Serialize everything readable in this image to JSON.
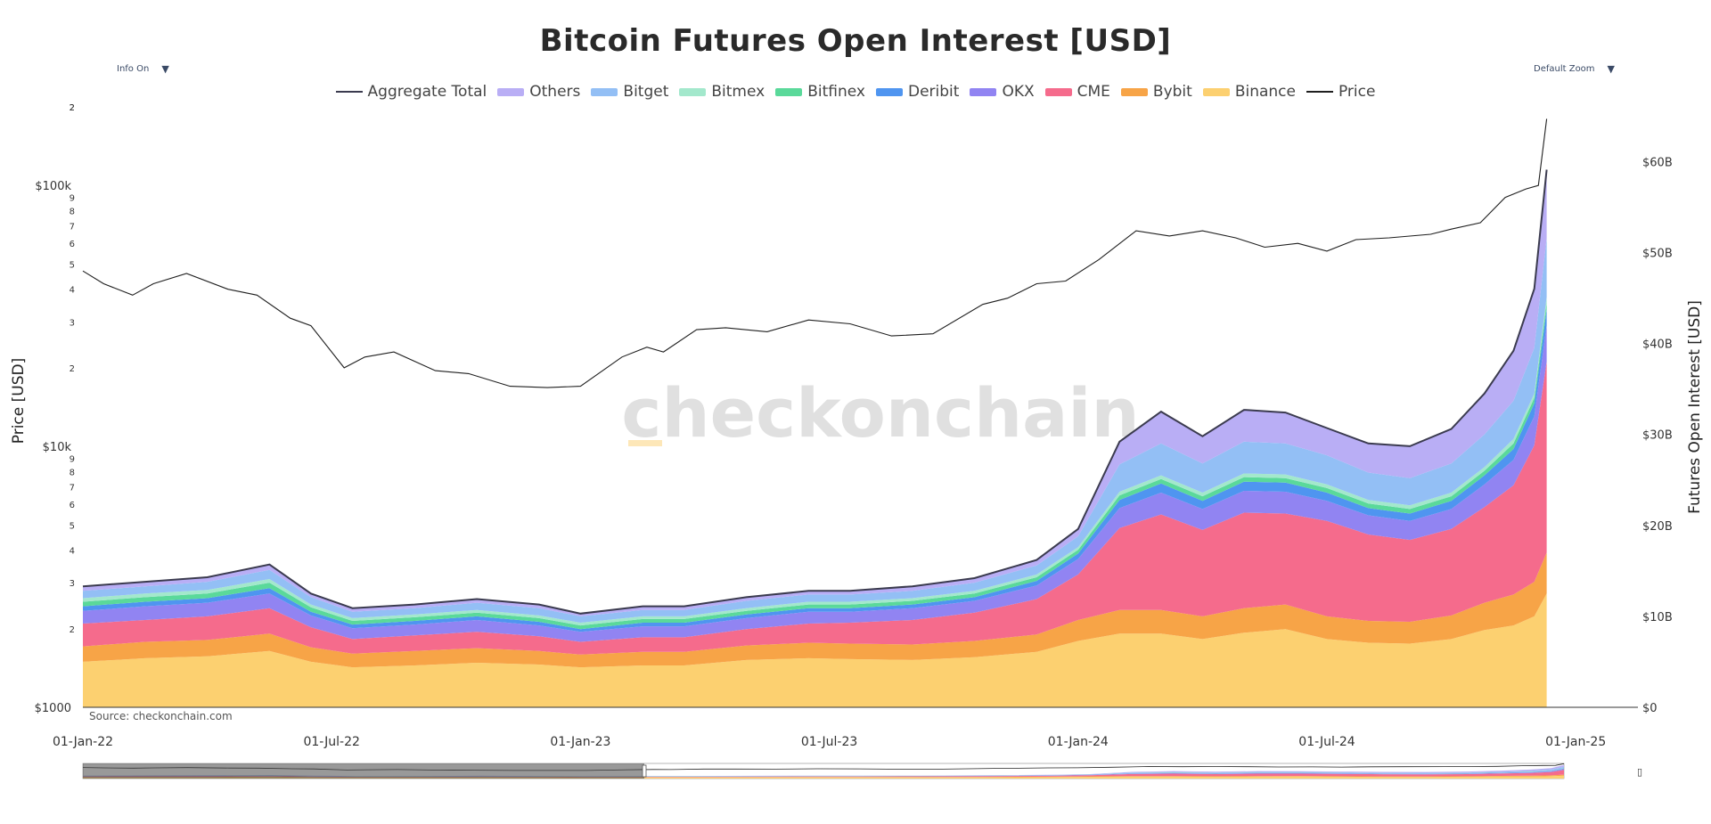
{
  "controls": {
    "info_label": "Info On",
    "zoom_label": "Default Zoom",
    "caret": "▼",
    "rangeslider_glyph": "▯"
  },
  "source_text": "Source: checkonchain.com",
  "watermark": "checkonchain",
  "colors": {
    "background": "#ffffff",
    "price_line": "#1f1f1f",
    "aggregate_line": "#3b3b4f",
    "axis": "#333333"
  },
  "chart_data": {
    "type": "area",
    "title": "Bitcoin Futures Open Interest [USD]",
    "y_left_label": "Price [USD]",
    "y_right_label": "Futures Open Interest [USD]",
    "y_left_scale": "log",
    "y_left_range": [
      1000,
      200000
    ],
    "y_left_major_ticks": [
      "$1000",
      "$10k",
      "$100k"
    ],
    "y_left_minor_ticks": [
      "2",
      "3",
      "4",
      "5",
      "6",
      "7",
      "8",
      "9"
    ],
    "y_left_top_tick": "2",
    "y_right_range": [
      0,
      66
    ],
    "y_right_unit": "B USD",
    "y_right_ticks": [
      "$0",
      "$10B",
      "$20B",
      "$30B",
      "$40B",
      "$50B",
      "$60B"
    ],
    "x_ticks": [
      "01-Jan-22",
      "01-Jul-22",
      "01-Jan-23",
      "01-Jul-23",
      "01-Jan-24",
      "01-Jul-24",
      "01-Jan-25"
    ],
    "x_range_months": [
      0,
      37.5
    ],
    "data_end_month": 35.3,
    "legend": [
      {
        "name": "Aggregate Total",
        "color": "#3b3b4f",
        "kind": "line"
      },
      {
        "name": "Others",
        "color": "#b9aef5",
        "kind": "area"
      },
      {
        "name": "Bitget",
        "color": "#93bff5",
        "kind": "area"
      },
      {
        "name": "Bitmex",
        "color": "#a3e8cc",
        "kind": "area"
      },
      {
        "name": "Bitfinex",
        "color": "#5ad99a",
        "kind": "area"
      },
      {
        "name": "Deribit",
        "color": "#4f95f0",
        "kind": "area"
      },
      {
        "name": "OKX",
        "color": "#9184f2",
        "kind": "area"
      },
      {
        "name": "CME",
        "color": "#f56b8c",
        "kind": "area"
      },
      {
        "name": "Bybit",
        "color": "#f7a447",
        "kind": "area"
      },
      {
        "name": "Binance",
        "color": "#fcd070",
        "kind": "area"
      },
      {
        "name": "Price",
        "color": "#1f1f1f",
        "kind": "line"
      }
    ],
    "x_months": [
      0,
      1.5,
      3,
      4.5,
      5.5,
      6.5,
      8,
      9.5,
      11,
      12,
      13.5,
      14.5,
      16,
      17.5,
      18.5,
      20,
      21.5,
      23,
      24,
      25,
      26,
      27,
      28,
      29,
      30,
      31,
      32,
      33,
      33.8,
      34.5,
      35,
      35.3
    ],
    "series": [
      {
        "name": "Binance",
        "values": [
          5.0,
          5.4,
          5.6,
          6.2,
          5.0,
          4.4,
          4.6,
          4.9,
          4.7,
          4.4,
          4.6,
          4.6,
          5.2,
          5.4,
          5.3,
          5.2,
          5.5,
          6.1,
          7.3,
          8.1,
          8.1,
          7.5,
          8.2,
          8.6,
          7.5,
          7.1,
          7.0,
          7.5,
          8.5,
          9.0,
          10.0,
          12.5
        ]
      },
      {
        "name": "Bybit",
        "values": [
          1.7,
          1.8,
          1.8,
          1.9,
          1.6,
          1.5,
          1.6,
          1.6,
          1.5,
          1.4,
          1.5,
          1.5,
          1.6,
          1.7,
          1.7,
          1.7,
          1.8,
          1.9,
          2.3,
          2.6,
          2.6,
          2.5,
          2.7,
          2.7,
          2.5,
          2.4,
          2.4,
          2.6,
          3.0,
          3.4,
          3.8,
          4.5
        ]
      },
      {
        "name": "CME",
        "values": [
          2.5,
          2.4,
          2.6,
          2.8,
          2.2,
          1.6,
          1.7,
          1.8,
          1.6,
          1.4,
          1.6,
          1.6,
          1.8,
          2.1,
          2.3,
          2.7,
          3.1,
          3.9,
          5.0,
          9.0,
          10.5,
          9.5,
          10.5,
          10.0,
          10.5,
          9.5,
          9.0,
          9.5,
          10.5,
          12.0,
          15.0,
          21.0
        ]
      },
      {
        "name": "OKX",
        "values": [
          1.4,
          1.5,
          1.5,
          1.6,
          1.3,
          1.2,
          1.2,
          1.3,
          1.2,
          1.1,
          1.2,
          1.2,
          1.2,
          1.3,
          1.2,
          1.3,
          1.3,
          1.5,
          1.7,
          2.2,
          2.4,
          2.3,
          2.4,
          2.4,
          2.2,
          2.1,
          2.1,
          2.2,
          2.5,
          2.8,
          3.2,
          4.0
        ]
      },
      {
        "name": "Deribit",
        "values": [
          0.5,
          0.5,
          0.5,
          0.6,
          0.4,
          0.4,
          0.4,
          0.4,
          0.4,
          0.3,
          0.4,
          0.4,
          0.4,
          0.4,
          0.4,
          0.4,
          0.4,
          0.5,
          0.6,
          0.9,
          1.0,
          0.9,
          1.0,
          1.0,
          0.9,
          0.8,
          0.8,
          0.9,
          1.0,
          1.2,
          1.4,
          1.8
        ]
      },
      {
        "name": "Bitfinex",
        "values": [
          0.5,
          0.5,
          0.5,
          0.6,
          0.5,
          0.4,
          0.4,
          0.4,
          0.4,
          0.4,
          0.4,
          0.4,
          0.4,
          0.4,
          0.4,
          0.4,
          0.4,
          0.4,
          0.4,
          0.5,
          0.5,
          0.5,
          0.5,
          0.5,
          0.5,
          0.5,
          0.5,
          0.5,
          0.5,
          0.6,
          0.6,
          0.7
        ]
      },
      {
        "name": "Bitmex",
        "values": [
          0.4,
          0.4,
          0.4,
          0.4,
          0.3,
          0.3,
          0.3,
          0.3,
          0.3,
          0.3,
          0.3,
          0.3,
          0.3,
          0.3,
          0.3,
          0.3,
          0.3,
          0.3,
          0.3,
          0.4,
          0.4,
          0.4,
          0.4,
          0.4,
          0.4,
          0.4,
          0.4,
          0.4,
          0.4,
          0.5,
          0.5,
          0.6
        ]
      },
      {
        "name": "Bitget",
        "values": [
          0.8,
          0.8,
          0.9,
          1.0,
          0.8,
          0.7,
          0.7,
          0.8,
          0.8,
          0.7,
          0.7,
          0.7,
          0.8,
          0.8,
          0.8,
          0.8,
          0.9,
          1.0,
          1.2,
          3.0,
          3.5,
          3.2,
          3.5,
          3.4,
          3.2,
          3.0,
          3.0,
          3.2,
          3.6,
          4.2,
          5.0,
          6.5
        ]
      },
      {
        "name": "Others",
        "values": [
          0.5,
          0.5,
          0.5,
          0.6,
          0.4,
          0.4,
          0.4,
          0.4,
          0.4,
          0.3,
          0.4,
          0.4,
          0.4,
          0.4,
          0.4,
          0.5,
          0.5,
          0.6,
          0.8,
          2.5,
          3.5,
          3.0,
          3.5,
          3.4,
          3.0,
          3.2,
          3.5,
          3.8,
          4.5,
          5.5,
          6.5,
          7.5
        ]
      }
    ],
    "price": {
      "x_months": [
        0,
        0.5,
        1.2,
        1.7,
        2.5,
        3.5,
        4.2,
        5,
        5.5,
        6.3,
        6.8,
        7.5,
        8.5,
        9.3,
        10.3,
        11.2,
        12,
        13,
        13.6,
        14,
        14.8,
        15.5,
        16.5,
        17.5,
        18.5,
        19.5,
        20.5,
        21.7,
        22.3,
        23,
        23.7,
        24.5,
        25.4,
        26.2,
        27,
        27.8,
        28.5,
        29.3,
        30,
        30.7,
        31.5,
        32.5,
        33,
        33.7,
        34.3,
        34.8,
        35.1,
        35.3
      ],
      "values": [
        47000,
        42000,
        38000,
        42000,
        46000,
        40000,
        38000,
        31000,
        29000,
        20000,
        22000,
        23000,
        19500,
        19000,
        17000,
        16800,
        17000,
        22000,
        24000,
        23000,
        28000,
        28500,
        27500,
        30500,
        29500,
        26500,
        27000,
        35000,
        37000,
        42000,
        43000,
        52000,
        67000,
        64000,
        67000,
        63000,
        58000,
        60000,
        56000,
        62000,
        63000,
        65000,
        68000,
        72000,
        90000,
        97000,
        100000,
        180000
      ]
    }
  }
}
